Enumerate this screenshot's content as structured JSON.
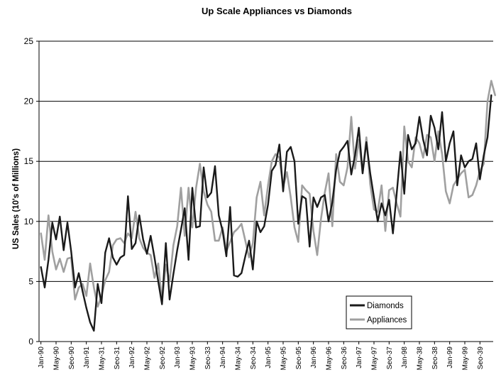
{
  "chart_data": {
    "type": "line",
    "title": "Up Scale Appliances vs Diamonds",
    "xlabel": "",
    "ylabel": "US Sales (10's of Millions)",
    "ylim": [
      0,
      25
    ],
    "yticks": [
      0,
      5,
      10,
      15,
      20,
      25
    ],
    "grid": true,
    "legend": "bottom-right",
    "x_start": "Jan-90",
    "x_end": "Dec-99",
    "tick_labels": [
      "Jan-90",
      "May-90",
      "Seo-90",
      "Jan-91",
      "May-31",
      "Seo-31",
      "Jan-92",
      "May-92",
      "Seo-92",
      "Jan-93",
      "May-93",
      "Seo-33",
      "Jan-94",
      "May-34",
      "Seo-34",
      "Jan-95",
      "May-95",
      "Seo-95",
      "Jan-96",
      "May-96",
      "Seo-36",
      "Jan-97",
      "May-97",
      "Seo-37",
      "Jan-98",
      "May-38",
      "Seo-38",
      "Jan-99",
      "May-99",
      "Seo-39"
    ],
    "series": [
      {
        "name": "Diamonds",
        "color": "#1a1a1a",
        "values": [
          6.2,
          4.5,
          6.8,
          9.9,
          8.5,
          10.4,
          7.6,
          9.9,
          7.5,
          4.5,
          5.7,
          4.2,
          2.8,
          1.6,
          0.9,
          4.8,
          3.2,
          7.4,
          8.6,
          7.0,
          6.4,
          7.0,
          7.2,
          12.1,
          7.7,
          8.2,
          10.5,
          8.5,
          7.3,
          8.8,
          7.0,
          5.0,
          3.1,
          8.2,
          3.5,
          5.6,
          7.6,
          9.3,
          11.1,
          6.8,
          12.8,
          9.5,
          9.6,
          14.5,
          12.0,
          12.4,
          14.6,
          10.5,
          9.2,
          7.1,
          11.2,
          5.5,
          5.4,
          5.7,
          7.1,
          8.4,
          6.0,
          10.0,
          9.1,
          9.6,
          11.4,
          14.2,
          14.7,
          16.4,
          12.5,
          15.8,
          16.2,
          15.0,
          9.8,
          12.1,
          11.9,
          7.9,
          12.0,
          11.2,
          12.0,
          12.2,
          10.0,
          11.6,
          14.3,
          15.8,
          16.2,
          16.7,
          13.9,
          15.5,
          17.8,
          14.0,
          16.6,
          14.0,
          12.0,
          10.0,
          11.5,
          10.5,
          11.8,
          9.0,
          12.3,
          15.8,
          12.3,
          17.2,
          16.0,
          16.5,
          18.7,
          16.8,
          15.5,
          18.8,
          17.8,
          16.0,
          19.1,
          15.0,
          16.5,
          17.5,
          13.0,
          15.5,
          14.5,
          15.0,
          15.2,
          16.5,
          13.5,
          15.5,
          17.0,
          20.5
        ]
      },
      {
        "name": "Appliances",
        "color": "#a0a0a0",
        "values": [
          9.0,
          6.8,
          10.5,
          7.5,
          6.0,
          6.9,
          5.8,
          6.9,
          7.0,
          3.5,
          4.5,
          4.8,
          3.8,
          6.5,
          4.5,
          2.9,
          3.8,
          5.1,
          5.8,
          8.0,
          8.5,
          8.6,
          8.2,
          9.0,
          8.6,
          10.8,
          8.6,
          7.8,
          7.4,
          7.2,
          5.3,
          6.5,
          3.3,
          6.4,
          5.0,
          8.0,
          9.6,
          12.8,
          8.8,
          12.8,
          9.5,
          12.8,
          14.8,
          12.5,
          11.4,
          10.8,
          8.4,
          8.4,
          9.5,
          7.5,
          8.3,
          9.1,
          9.4,
          9.8,
          8.4,
          7.0,
          8.2,
          12.0,
          13.3,
          10.5,
          13.0,
          15.0,
          15.6,
          15.3,
          12.9,
          14.1,
          12.0,
          9.5,
          8.3,
          13.0,
          12.6,
          12.3,
          9.2,
          7.2,
          10.2,
          12.4,
          14.0,
          9.6,
          15.6,
          13.3,
          13.0,
          14.5,
          18.7,
          14.4,
          16.8,
          14.0,
          17.0,
          13.1,
          11.0,
          10.8,
          13.0,
          9.2,
          12.6,
          12.8,
          11.5,
          10.4,
          17.9,
          15.0,
          14.5,
          17.0,
          16.5,
          15.3,
          17.2,
          17.0,
          15.0,
          17.5,
          15.6,
          12.5,
          11.5,
          13.0,
          13.5,
          14.0,
          14.3,
          12.0,
          12.2,
          13.0,
          14.2,
          14.8,
          20.0,
          21.7,
          20.5
        ]
      }
    ]
  }
}
